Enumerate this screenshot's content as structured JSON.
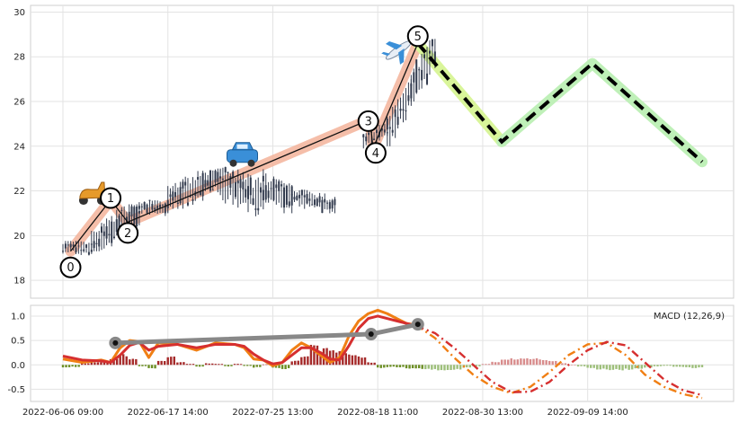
{
  "chart_data": [
    {
      "type": "candlestick",
      "grid": true,
      "ylim": [
        17.2,
        30.3
      ],
      "y_ticks": [
        18,
        20,
        22,
        24,
        26,
        28,
        30
      ],
      "candles_clusters": [
        {
          "x_start": 0.0,
          "x_end": 3.0,
          "low": 19.1,
          "high": 20.0,
          "trend_from": 19.5,
          "trend_to": 19.4
        },
        {
          "x_start": 3.0,
          "x_end": 8.0,
          "low": 19.3,
          "high": 21.4,
          "trend_from": 19.5,
          "trend_to": 21.2
        },
        {
          "x_start": 8.0,
          "x_end": 11.0,
          "low": 20.8,
          "high": 21.8,
          "trend_from": 21.3,
          "trend_to": 21.2
        },
        {
          "x_start": 11.0,
          "x_end": 16.5,
          "low": 21.0,
          "high": 23.0,
          "trend_from": 21.6,
          "trend_to": 22.6
        },
        {
          "x_start": 16.5,
          "x_end": 21.0,
          "low": 20.8,
          "high": 23.4,
          "trend_from": 22.4,
          "trend_to": 21.6
        },
        {
          "x_start": 21.0,
          "x_end": 24.0,
          "low": 21.0,
          "high": 23.2,
          "trend_from": 22.2,
          "trend_to": 21.5
        },
        {
          "x_start": 24.0,
          "x_end": 28.5,
          "low": 21.0,
          "high": 22.3,
          "trend_from": 21.8,
          "trend_to": 21.3
        },
        {
          "x_start": 31.5,
          "x_end": 34.0,
          "low": 23.9,
          "high": 25.0,
          "trend_from": 24.2,
          "trend_to": 24.8
        },
        {
          "x_start": 34.0,
          "x_end": 36.5,
          "low": 24.0,
          "high": 27.0,
          "trend_from": 24.5,
          "trend_to": 26.6
        },
        {
          "x_start": 36.5,
          "x_end": 39.0,
          "low": 26.0,
          "high": 28.8,
          "trend_from": 26.5,
          "trend_to": 28.3
        }
      ],
      "wave_points": [
        {
          "label": "0",
          "x": 0.8,
          "y": 19.3
        },
        {
          "label": "1",
          "x": 5.0,
          "y": 21.6
        },
        {
          "label": "2",
          "x": 6.8,
          "y": 20.6
        },
        {
          "label": "3",
          "x": 32.2,
          "y": 25.2
        },
        {
          "label": "4",
          "x": 32.5,
          "y": 23.9
        },
        {
          "label": "5",
          "x": 37.2,
          "y": 28.6
        }
      ],
      "projection": [
        {
          "x": 37.2,
          "y": 28.6
        },
        {
          "x": 46.0,
          "y": 24.2
        },
        {
          "x": 55.5,
          "y": 27.7
        },
        {
          "x": 67.0,
          "y": 23.3
        }
      ],
      "emoji_markers": [
        {
          "icon": "scooter",
          "x": 3.1,
          "y": 21.9
        },
        {
          "icon": "car",
          "x": 18.8,
          "y": 23.6
        },
        {
          "icon": "airplane",
          "x": 35.2,
          "y": 28.3
        }
      ],
      "colors": {
        "wave_band": "#f3b39a",
        "proj_band_1": "#d9f59a",
        "proj_band_2": "#bff0b8",
        "candle": "#323b4e"
      }
    },
    {
      "type": "line",
      "legend_text": "MACD (12,26,9)",
      "ylim": [
        -0.75,
        1.22
      ],
      "y_ticks": [
        -0.5,
        0.0,
        0.5,
        1.0
      ],
      "x_ticks": [
        {
          "x": 0,
          "label": "2022-06-06 09:00"
        },
        {
          "x": 11,
          "label": "2022-06-17 14:00"
        },
        {
          "x": 22,
          "label": "2022-07-25 13:00"
        },
        {
          "x": 33,
          "label": "2022-08-18 11:00"
        },
        {
          "x": 44,
          "label": "2022-08-30 13:00"
        },
        {
          "x": 55,
          "label": "2022-09-09 14:00"
        }
      ],
      "series": [
        {
          "color": "#f07f14",
          "x": [
            0,
            2,
            4,
            5,
            6,
            7,
            8,
            9,
            10,
            12,
            14,
            16,
            18,
            19,
            20,
            21,
            22,
            23,
            24,
            25,
            26,
            27,
            28,
            29,
            30,
            31,
            32,
            33,
            34,
            35,
            36,
            37
          ],
          "values": [
            0.12,
            0.05,
            0.1,
            0.05,
            0.35,
            0.5,
            0.48,
            0.15,
            0.45,
            0.42,
            0.3,
            0.45,
            0.42,
            0.35,
            0.12,
            0.1,
            -0.02,
            0.05,
            0.3,
            0.45,
            0.35,
            0.2,
            0.05,
            0.15,
            0.6,
            0.9,
            1.05,
            1.12,
            1.05,
            0.95,
            0.85,
            0.82
          ]
        },
        {
          "color": "#d62f2f",
          "x": [
            0,
            2,
            4,
            5,
            6,
            7,
            8,
            9,
            10,
            12,
            14,
            16,
            18,
            19,
            20,
            21,
            22,
            23,
            24,
            25,
            26,
            27,
            28,
            29,
            30,
            31,
            32,
            33,
            34,
            35,
            36,
            37
          ],
          "values": [
            0.18,
            0.1,
            0.08,
            0.05,
            0.2,
            0.4,
            0.46,
            0.3,
            0.38,
            0.42,
            0.35,
            0.42,
            0.42,
            0.38,
            0.22,
            0.1,
            0.02,
            0.05,
            0.2,
            0.35,
            0.35,
            0.25,
            0.12,
            0.1,
            0.4,
            0.75,
            0.95,
            1.0,
            0.95,
            0.9,
            0.85,
            0.8
          ]
        }
      ],
      "projection_series": [
        {
          "color": "#f07f14",
          "x": [
            37,
            39,
            41,
            43,
            45,
            47,
            49,
            51,
            53,
            55,
            57,
            59,
            61,
            63,
            65,
            67
          ],
          "values": [
            0.82,
            0.55,
            0.15,
            -0.2,
            -0.45,
            -0.58,
            -0.45,
            -0.15,
            0.2,
            0.42,
            0.45,
            0.2,
            -0.2,
            -0.45,
            -0.6,
            -0.68
          ]
        },
        {
          "color": "#d62f2f",
          "x": [
            37,
            39,
            41,
            43,
            45,
            47,
            49,
            51,
            53,
            55,
            57,
            59,
            61,
            63,
            65,
            67
          ],
          "values": [
            0.8,
            0.65,
            0.35,
            0.0,
            -0.35,
            -0.56,
            -0.55,
            -0.35,
            0.0,
            0.3,
            0.47,
            0.4,
            0.05,
            -0.3,
            -0.52,
            -0.62
          ]
        }
      ],
      "divergence_line": {
        "color": "#888888",
        "points": [
          {
            "x": 5.5,
            "y": 0.45
          },
          {
            "x": 32.3,
            "y": 0.63
          },
          {
            "x": 37.2,
            "y": 0.83
          }
        ]
      },
      "histogram": {
        "color_pos": "#a52a2a",
        "color_neg": "#6b8e23",
        "color_pos_proj": "#d88c8c",
        "color_neg_proj": "#9dbf7a",
        "x": [
          0,
          1,
          2,
          3,
          4,
          5,
          6,
          7,
          8,
          9,
          10,
          11,
          12,
          13,
          14,
          15,
          16,
          17,
          18,
          19,
          20,
          21,
          22,
          23,
          24,
          25,
          26,
          27,
          28,
          29,
          30,
          31,
          32,
          33,
          34,
          35,
          36,
          37,
          38,
          39,
          40,
          41,
          42,
          43,
          44,
          45,
          46,
          47,
          48,
          49,
          50,
          51,
          52,
          53,
          54,
          55,
          56,
          57,
          58,
          59,
          60,
          61,
          62,
          63,
          64,
          65,
          66,
          67
        ],
        "values": [
          -0.05,
          -0.04,
          0.03,
          0.05,
          0.06,
          0.12,
          0.2,
          0.12,
          -0.03,
          -0.07,
          0.08,
          0.15,
          0.05,
          0.02,
          -0.04,
          0.03,
          0.02,
          -0.03,
          0.02,
          -0.02,
          -0.05,
          0.01,
          -0.06,
          -0.08,
          0.08,
          0.18,
          0.38,
          0.3,
          0.28,
          0.25,
          0.2,
          0.15,
          0.05,
          -0.06,
          -0.04,
          -0.05,
          -0.07,
          -0.08,
          -0.09,
          -0.1,
          -0.1,
          -0.09,
          -0.06,
          -0.03,
          0.02,
          0.06,
          0.1,
          0.12,
          0.13,
          0.12,
          0.1,
          0.07,
          0.03,
          0.0,
          -0.03,
          -0.06,
          -0.09,
          -0.1,
          -0.1,
          -0.09,
          -0.07,
          -0.05,
          -0.03,
          -0.02,
          -0.04,
          -0.05,
          -0.06,
          -0.05
        ]
      }
    }
  ]
}
